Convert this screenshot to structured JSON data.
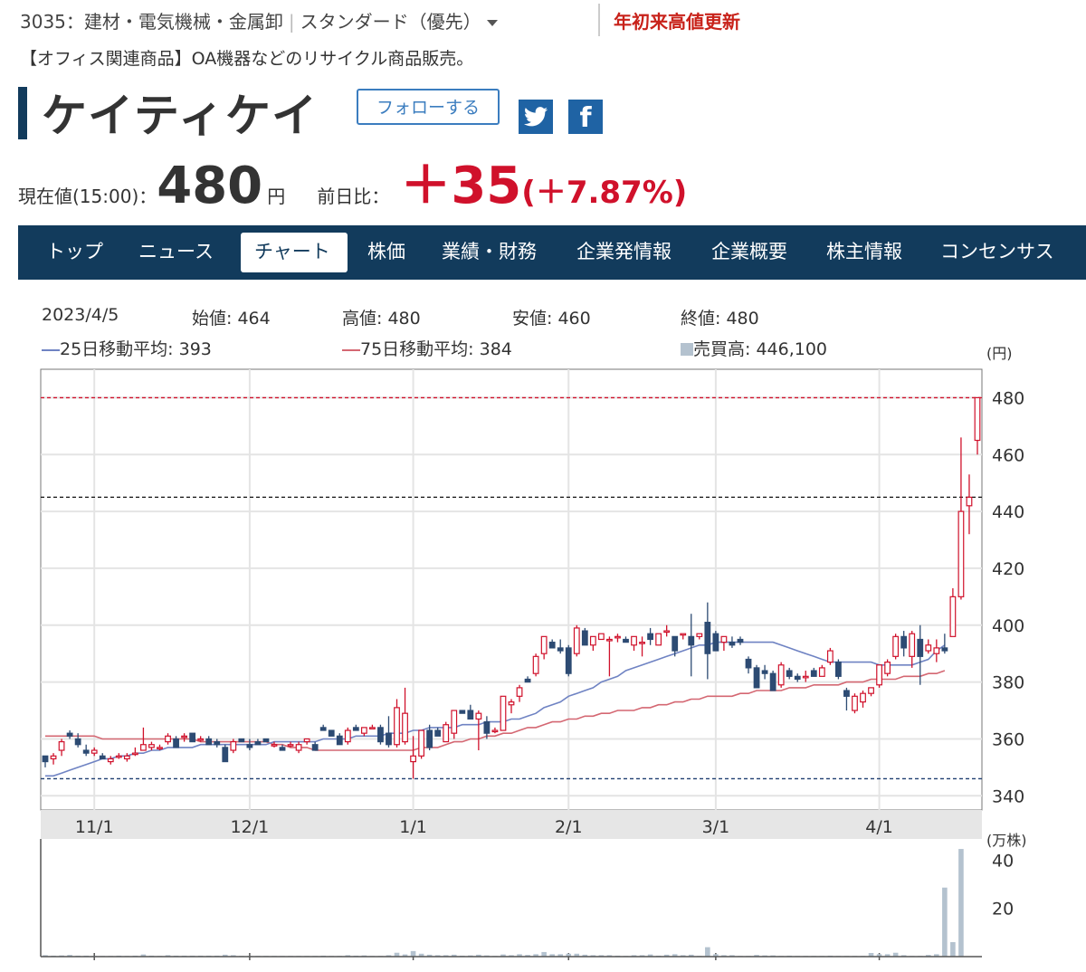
{
  "header": {
    "code_sector": "3035：建材・電気機械・金属卸",
    "market": "スタンダード（優先）",
    "ytd_high": "年初来高値更新",
    "description": "【オフィス関連商品】OA機器などのリサイクル商品販売。",
    "company": "ケイティケイ",
    "follow_label": "フォローする",
    "twitter_icon": "twitter-icon",
    "facebook_icon": "facebook-icon"
  },
  "price": {
    "label": "現在値(15:00)：",
    "value": "480",
    "unit": "円",
    "change_label": "前日比：",
    "change": "＋35",
    "change_pct": "(＋7.87%)"
  },
  "nav": {
    "items": [
      "トップ",
      "ニュース",
      "チャート",
      "株価",
      "業績・財務",
      "企業発情報",
      "企業概要",
      "株主情報",
      "コンセンサス"
    ],
    "active_index": 2
  },
  "info": {
    "date": "2023/4/5",
    "open": "始値: 464",
    "high": "高値: 480",
    "low": "安値: 460",
    "close": "終値: 480",
    "ma25": "25日移動平均: 393",
    "ma75": "75日移動平均: 384",
    "volume": "売買高: 446,100"
  },
  "colors": {
    "navy": "#123b5c",
    "up": "#d0112b",
    "down": "#2d4b73",
    "ma25": "#6f83c3",
    "ma75": "#d46772",
    "volume": "#b4c2cf"
  },
  "chart_data": {
    "type": "candlestick",
    "price_unit": "(円)",
    "volume_unit": "(万株)",
    "ylim": [
      335,
      490
    ],
    "y_ticks": [
      480,
      460,
      440,
      420,
      400,
      380,
      360,
      340
    ],
    "volume_ylim": [
      0,
      45
    ],
    "volume_ticks": [
      40,
      20
    ],
    "x_ticks": [
      {
        "label": "11/1",
        "index": 6
      },
      {
        "label": "12/1",
        "index": 25
      },
      {
        "label": "1/1",
        "index": 45
      },
      {
        "label": "2/1",
        "index": 64
      },
      {
        "label": "3/1",
        "index": 82
      },
      {
        "label": "4/1",
        "index": 102
      }
    ],
    "reference_lines": [
      {
        "value": 480,
        "style": "red-dashed"
      },
      {
        "value": 445,
        "style": "black-dashed"
      },
      {
        "value": 346,
        "style": "navy-dashed"
      }
    ],
    "ohlc": [
      [
        354,
        354,
        350,
        352
      ],
      [
        353,
        355,
        351,
        354
      ],
      [
        356,
        360,
        354,
        359
      ],
      [
        362,
        363,
        360,
        361
      ],
      [
        360,
        362,
        357,
        358
      ],
      [
        356,
        358,
        354,
        355
      ],
      [
        355,
        357,
        354,
        356
      ],
      [
        354,
        355,
        353,
        353
      ],
      [
        352,
        354,
        351,
        353
      ],
      [
        354,
        355,
        353,
        354
      ],
      [
        353,
        355,
        352,
        354
      ],
      [
        355,
        357,
        354,
        355
      ],
      [
        356,
        364,
        356,
        358
      ],
      [
        357,
        359,
        356,
        358
      ],
      [
        357,
        358,
        356,
        357
      ],
      [
        359,
        362,
        358,
        361
      ],
      [
        360,
        361,
        357,
        357
      ],
      [
        361,
        362,
        359,
        361
      ],
      [
        362,
        362,
        359,
        359
      ],
      [
        360,
        361,
        359,
        360
      ],
      [
        360,
        361,
        358,
        358
      ],
      [
        359,
        360,
        357,
        358
      ],
      [
        357,
        358,
        352,
        352
      ],
      [
        356,
        360,
        355,
        359
      ],
      [
        360,
        360,
        359,
        359
      ],
      [
        358,
        360,
        356,
        357
      ],
      [
        359,
        360,
        358,
        358
      ],
      [
        360,
        360,
        359,
        359
      ],
      [
        358,
        359,
        357,
        358
      ],
      [
        357,
        358,
        356,
        356
      ],
      [
        358,
        359,
        357,
        358
      ],
      [
        356,
        359,
        355,
        358
      ],
      [
        359,
        360,
        358,
        360
      ],
      [
        358,
        359,
        356,
        356
      ],
      [
        364,
        365,
        363,
        363
      ],
      [
        363,
        363,
        361,
        361
      ],
      [
        361,
        362,
        358,
        358
      ],
      [
        359,
        364,
        358,
        363
      ],
      [
        364,
        365,
        363,
        363
      ],
      [
        362,
        364,
        361,
        364
      ],
      [
        364,
        365,
        364,
        364
      ],
      [
        364,
        365,
        358,
        359
      ],
      [
        362,
        368,
        357,
        358
      ],
      [
        358,
        374,
        357,
        371
      ],
      [
        359,
        378,
        358,
        369
      ],
      [
        352,
        361,
        346,
        354
      ],
      [
        354,
        363,
        353,
        363
      ],
      [
        363,
        365,
        356,
        357
      ],
      [
        363,
        364,
        361,
        361
      ],
      [
        359,
        366,
        359,
        365
      ],
      [
        362,
        370,
        360,
        370
      ],
      [
        370,
        370,
        369,
        369
      ],
      [
        370,
        372,
        367,
        367
      ],
      [
        367,
        370,
        356,
        369
      ],
      [
        366,
        368,
        360,
        362
      ],
      [
        363,
        364,
        362,
        363
      ],
      [
        363,
        375,
        363,
        375
      ],
      [
        372,
        374,
        369,
        373
      ],
      [
        375,
        379,
        373,
        378
      ],
      [
        381,
        382,
        380,
        380
      ],
      [
        383,
        390,
        382,
        389
      ],
      [
        390,
        396,
        388,
        396
      ],
      [
        394,
        395,
        392,
        392
      ],
      [
        392,
        395,
        390,
        391
      ],
      [
        392,
        393,
        382,
        383
      ],
      [
        390,
        400,
        389,
        399
      ],
      [
        398,
        399,
        393,
        393
      ],
      [
        393,
        396,
        391,
        396
      ],
      [
        395,
        397,
        395,
        397
      ],
      [
        395,
        396,
        382,
        395
      ],
      [
        396,
        397,
        394,
        396
      ],
      [
        395,
        396,
        394,
        394
      ],
      [
        393,
        396,
        391,
        396
      ],
      [
        394,
        396,
        389,
        394
      ],
      [
        397,
        399,
        393,
        395
      ],
      [
        393,
        397,
        393,
        397
      ],
      [
        398,
        400,
        396,
        398
      ],
      [
        396,
        396,
        389,
        391
      ],
      [
        397,
        397,
        395,
        397
      ],
      [
        396,
        404,
        382,
        393
      ],
      [
        396,
        397,
        395,
        397
      ],
      [
        401,
        408,
        381,
        390
      ],
      [
        397,
        398,
        391,
        391
      ],
      [
        394,
        396,
        391,
        396
      ],
      [
        394,
        396,
        392,
        393
      ],
      [
        395,
        396,
        393,
        394
      ],
      [
        388,
        389,
        383,
        385
      ],
      [
        385,
        386,
        378,
        378
      ],
      [
        384,
        386,
        381,
        383
      ],
      [
        383,
        384,
        377,
        377
      ],
      [
        379,
        387,
        378,
        386
      ],
      [
        384,
        385,
        381,
        382
      ],
      [
        382,
        383,
        380,
        381
      ],
      [
        382,
        384,
        380,
        382
      ],
      [
        384,
        385,
        382,
        382
      ],
      [
        382,
        386,
        382,
        385
      ],
      [
        387,
        392,
        386,
        391
      ],
      [
        387,
        388,
        381,
        382
      ],
      [
        377,
        378,
        370,
        375
      ],
      [
        370,
        376,
        369,
        375
      ],
      [
        373,
        377,
        371,
        376
      ],
      [
        376,
        378,
        375,
        378
      ],
      [
        379,
        386,
        378,
        386
      ],
      [
        383,
        388,
        382,
        387
      ],
      [
        389,
        397,
        388,
        396
      ],
      [
        396,
        398,
        389,
        392
      ],
      [
        389,
        398,
        385,
        397
      ],
      [
        395,
        400,
        379,
        389
      ],
      [
        391,
        395,
        390,
        393
      ],
      [
        390,
        395,
        387,
        392
      ],
      [
        392,
        397,
        390,
        391
      ],
      [
        396,
        413,
        396,
        410
      ],
      [
        410,
        466,
        409,
        440
      ],
      [
        442,
        453,
        432,
        445
      ],
      [
        465,
        480,
        460,
        480
      ]
    ],
    "ma25": [
      347,
      347,
      348,
      349,
      350,
      351,
      352,
      353,
      353,
      354,
      354,
      355,
      355,
      356,
      356,
      357,
      357,
      357,
      357,
      358,
      358,
      358,
      358,
      358,
      358,
      358,
      358,
      358,
      359,
      359,
      359,
      359,
      359,
      359,
      360,
      360,
      360,
      360,
      361,
      361,
      361,
      361,
      362,
      362,
      362,
      363,
      363,
      364,
      364,
      364,
      364,
      365,
      365,
      365,
      366,
      366,
      366,
      367,
      367,
      368,
      369,
      371,
      372,
      373,
      375,
      376,
      377,
      378,
      380,
      381,
      382,
      384,
      385,
      386,
      387,
      388,
      389,
      390,
      391,
      392,
      393,
      393,
      394,
      394,
      394,
      394,
      394,
      394,
      394,
      394,
      393,
      392,
      391,
      390,
      389,
      388,
      387,
      387,
      387,
      387,
      387,
      387,
      386,
      386,
      386,
      386,
      386,
      387,
      388,
      391,
      393
    ],
    "ma75": [
      361,
      361,
      361,
      361,
      361,
      361,
      361,
      360,
      360,
      360,
      360,
      360,
      360,
      360,
      360,
      360,
      360,
      360,
      360,
      359,
      359,
      359,
      359,
      359,
      359,
      359,
      359,
      359,
      358,
      358,
      357,
      357,
      357,
      356,
      356,
      356,
      356,
      356,
      356,
      356,
      356,
      356,
      356,
      356,
      356,
      356,
      357,
      357,
      357,
      358,
      359,
      359,
      360,
      360,
      361,
      361,
      362,
      362,
      363,
      364,
      364,
      365,
      366,
      366,
      367,
      367,
      368,
      368,
      369,
      369,
      370,
      370,
      370,
      371,
      371,
      372,
      372,
      373,
      373,
      374,
      374,
      375,
      375,
      375,
      375,
      376,
      376,
      377,
      377,
      377,
      377,
      378,
      378,
      378,
      379,
      379,
      379,
      379,
      380,
      380,
      380,
      381,
      381,
      381,
      381,
      382,
      382,
      382,
      383,
      383,
      384
    ],
    "volume": [
      0.6,
      0.4,
      0.5,
      0.7,
      0.4,
      0.4,
      0.3,
      0.3,
      0.3,
      0.4,
      0.3,
      0.4,
      0.9,
      0.4,
      0.3,
      0.6,
      0.4,
      0.4,
      0.4,
      0.4,
      0.4,
      0.4,
      0.8,
      0.6,
      0.3,
      0.3,
      0.3,
      0.3,
      0.3,
      0.3,
      0.3,
      0.3,
      0.3,
      0.3,
      0.4,
      0.3,
      0.3,
      0.6,
      0.4,
      0.5,
      0.3,
      0.3,
      0.6,
      1.6,
      0.9,
      2.3,
      1.2,
      0.8,
      0.6,
      0.6,
      0.8,
      0.4,
      0.5,
      0.8,
      0.5,
      0.3,
      0.9,
      0.6,
      1.0,
      0.7,
      1.0,
      1.9,
      1.0,
      1.0,
      1.2,
      1.2,
      0.8,
      0.6,
      0.6,
      0.6,
      0.4,
      0.3,
      0.6,
      0.6,
      0.9,
      0.4,
      0.8,
      1.0,
      0.6,
      0.8,
      0.3,
      3.9,
      1.0,
      0.6,
      0.6,
      0.3,
      0.3,
      0.7,
      0.5,
      0.5,
      0.3,
      0.4,
      0.3,
      0.3,
      0.3,
      0.3,
      0.4,
      0.3,
      0.3,
      0.3,
      0.3,
      1.5,
      1.0,
      1.0,
      1.6,
      0.6,
      0.3,
      0.3,
      0.7,
      1.0,
      28.6,
      6.0,
      44.6
    ]
  }
}
